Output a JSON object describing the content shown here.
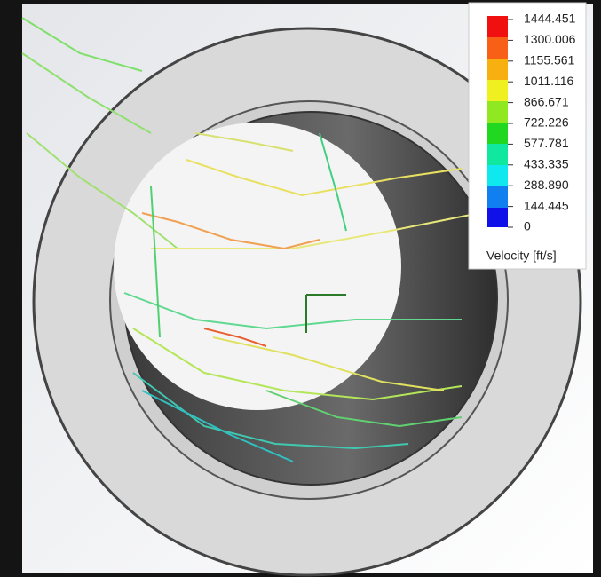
{
  "legend": {
    "ticks": [
      "1444.451",
      "1300.006",
      "1155.561",
      "1011.116",
      "866.671",
      "722.226",
      "577.781",
      "433.335",
      "288.890",
      "144.445",
      "0"
    ],
    "title": "Velocity [ft/s]"
  }
}
